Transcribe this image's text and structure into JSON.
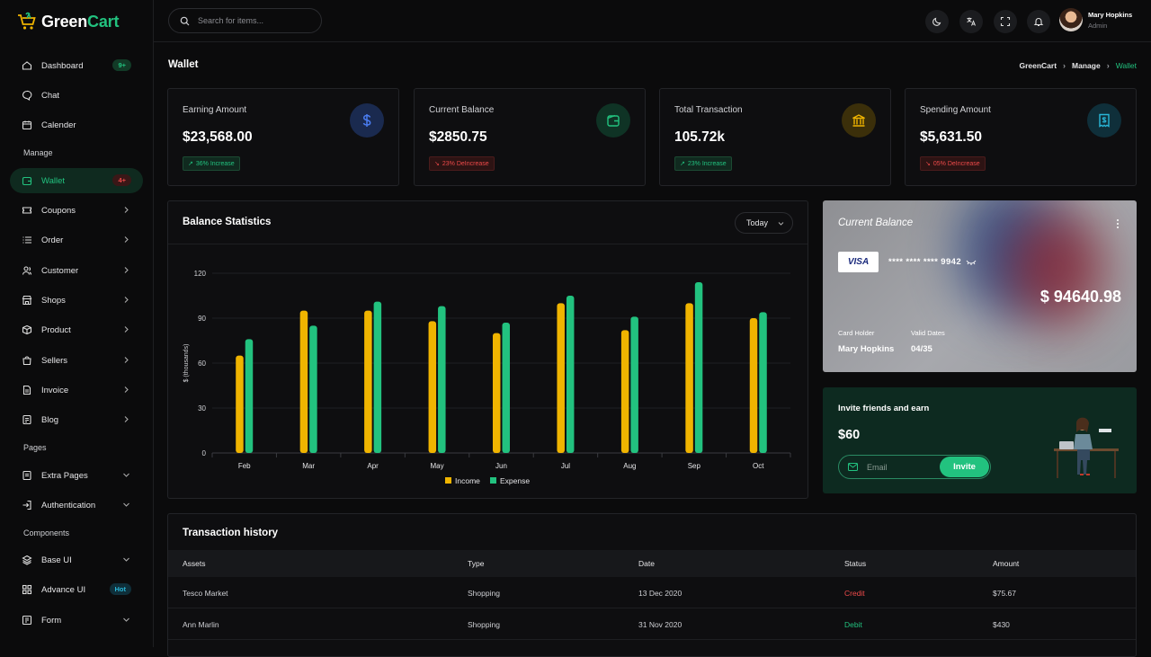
{
  "app": {
    "logo_part1": "Green",
    "logo_part2": "Cart"
  },
  "search": {
    "placeholder": "Search for items..."
  },
  "user": {
    "name": "Mary Hopkins",
    "role": "Admin"
  },
  "sidebar": {
    "items": [
      {
        "label": "Dashboard",
        "badge": "9+"
      },
      {
        "label": "Chat"
      },
      {
        "label": "Calender"
      },
      {
        "section": "Manage"
      },
      {
        "label": "Wallet",
        "badge": "4+"
      },
      {
        "label": "Coupons"
      },
      {
        "label": "Order"
      },
      {
        "label": "Customer"
      },
      {
        "label": "Shops"
      },
      {
        "label": "Product"
      },
      {
        "label": "Sellers"
      },
      {
        "label": "Invoice"
      },
      {
        "label": "Blog"
      },
      {
        "section": "Pages"
      },
      {
        "label": "Extra Pages"
      },
      {
        "label": "Authentication"
      },
      {
        "section": "Components"
      },
      {
        "label": "Base UI"
      },
      {
        "label": "Advance UI",
        "badge": "Hot"
      },
      {
        "label": "Form"
      }
    ]
  },
  "page": {
    "title": "Wallet",
    "breadcrumb": [
      "GreenCart",
      "Manage",
      "Wallet"
    ]
  },
  "stats": [
    {
      "label": "Earning Amount",
      "value": "$23,568.00",
      "tag": "36% Increase",
      "trend": "up",
      "icon": "dollar-icon",
      "color": "#4a7cf0"
    },
    {
      "label": "Current Balance",
      "value": "$2850.75",
      "tag": "23% DeIncrease",
      "trend": "down",
      "icon": "wallet-icon",
      "color": "#22c27f"
    },
    {
      "label": "Total Transaction",
      "value": "105.72k",
      "tag": "23% Increase",
      "trend": "up",
      "icon": "bank-icon",
      "color": "#f0b400"
    },
    {
      "label": "Spending Amount",
      "value": "$5,631.50",
      "tag": "05% DeIncrease",
      "trend": "down",
      "icon": "receipt-icon",
      "color": "#29b6d8"
    }
  ],
  "balance_stats": {
    "title": "Balance Statistics",
    "filter": "Today"
  },
  "chart_data": {
    "type": "bar",
    "categories": [
      "Feb",
      "Mar",
      "Apr",
      "May",
      "Jun",
      "Jul",
      "Aug",
      "Sep",
      "Oct"
    ],
    "series": [
      {
        "name": "Income",
        "color": "#f0b400",
        "values": [
          65,
          95,
          95,
          88,
          80,
          100,
          82,
          100,
          90
        ]
      },
      {
        "name": "Expense",
        "color": "#22c27f",
        "values": [
          76,
          85,
          101,
          98,
          87,
          105,
          91,
          114,
          94
        ]
      }
    ],
    "ylabel": "$ (thousands)",
    "ylim": [
      0,
      120
    ],
    "yticks": [
      0,
      30,
      60,
      90,
      120
    ],
    "grid": true,
    "legend": "bottom"
  },
  "current_balance_card": {
    "title": "Current Balance",
    "brand": "VISA",
    "card_number": "**** **** **** 9942",
    "amount": "$ 94640.98",
    "holder_label": "Card Holder",
    "holder": "Mary Hopkins",
    "valid_label": "Valid Dates",
    "valid": "04/35"
  },
  "invite": {
    "title": "Invite friends and earn",
    "amount": "$60",
    "placeholder": "Email",
    "button": "Invite"
  },
  "transactions": {
    "title": "Transaction history",
    "columns": [
      "Assets",
      "Type",
      "Date",
      "Status",
      "Amount"
    ],
    "rows": [
      {
        "assets": "Tesco Market",
        "type": "Shopping",
        "date": "13 Dec 2020",
        "status": "Credit",
        "amount": "$75.67"
      },
      {
        "assets": "Ann Marlin",
        "type": "Shopping",
        "date": "31 Nov 2020",
        "status": "Debit",
        "amount": "$430"
      }
    ]
  }
}
